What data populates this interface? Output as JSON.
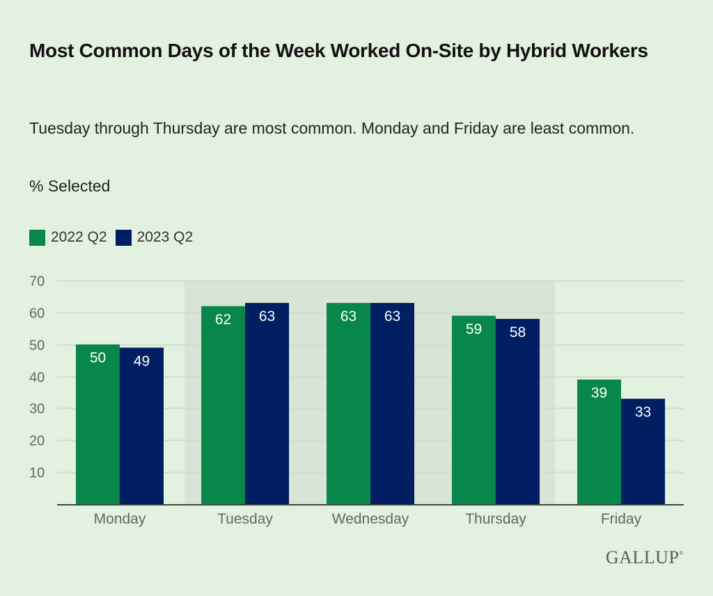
{
  "header": {
    "title": "Most Common Days of the Week Worked On-Site by Hybrid Workers",
    "subtitle": "Tuesday through Thursday are most common. Monday and Friday are least common.",
    "unit_label": "% Selected"
  },
  "legend": [
    {
      "label": "2022 Q2",
      "color": "#08874a"
    },
    {
      "label": "2023 Q2",
      "color": "#001f63"
    }
  ],
  "logo": {
    "text": "GALLUP",
    "mark": "®"
  },
  "colors": {
    "background": "#e3f1e0",
    "highlight_band": "#d8e4d5",
    "gridline": "#cfddcb",
    "axis": "#444444"
  },
  "chart_data": {
    "type": "bar",
    "title": "Most Common Days of the Week Worked On-Site by Hybrid Workers",
    "subtitle": "Tuesday through Thursday are most common. Monday and Friday are least common.",
    "xlabel": "",
    "ylabel": "% Selected",
    "categories": [
      "Monday",
      "Tuesday",
      "Wednesday",
      "Thursday",
      "Friday"
    ],
    "series": [
      {
        "name": "2022 Q2",
        "color": "#08874a",
        "values": [
          50,
          62,
          63,
          59,
          39
        ]
      },
      {
        "name": "2023 Q2",
        "color": "#001f63",
        "values": [
          49,
          63,
          63,
          58,
          33
        ]
      }
    ],
    "ylim": [
      0,
      70
    ],
    "yticks": [
      10,
      20,
      30,
      40,
      50,
      60,
      70
    ],
    "grid": true,
    "legend_position": "top-left",
    "highlighted_categories": [
      "Tuesday",
      "Wednesday",
      "Thursday"
    ],
    "data_labels": true
  }
}
